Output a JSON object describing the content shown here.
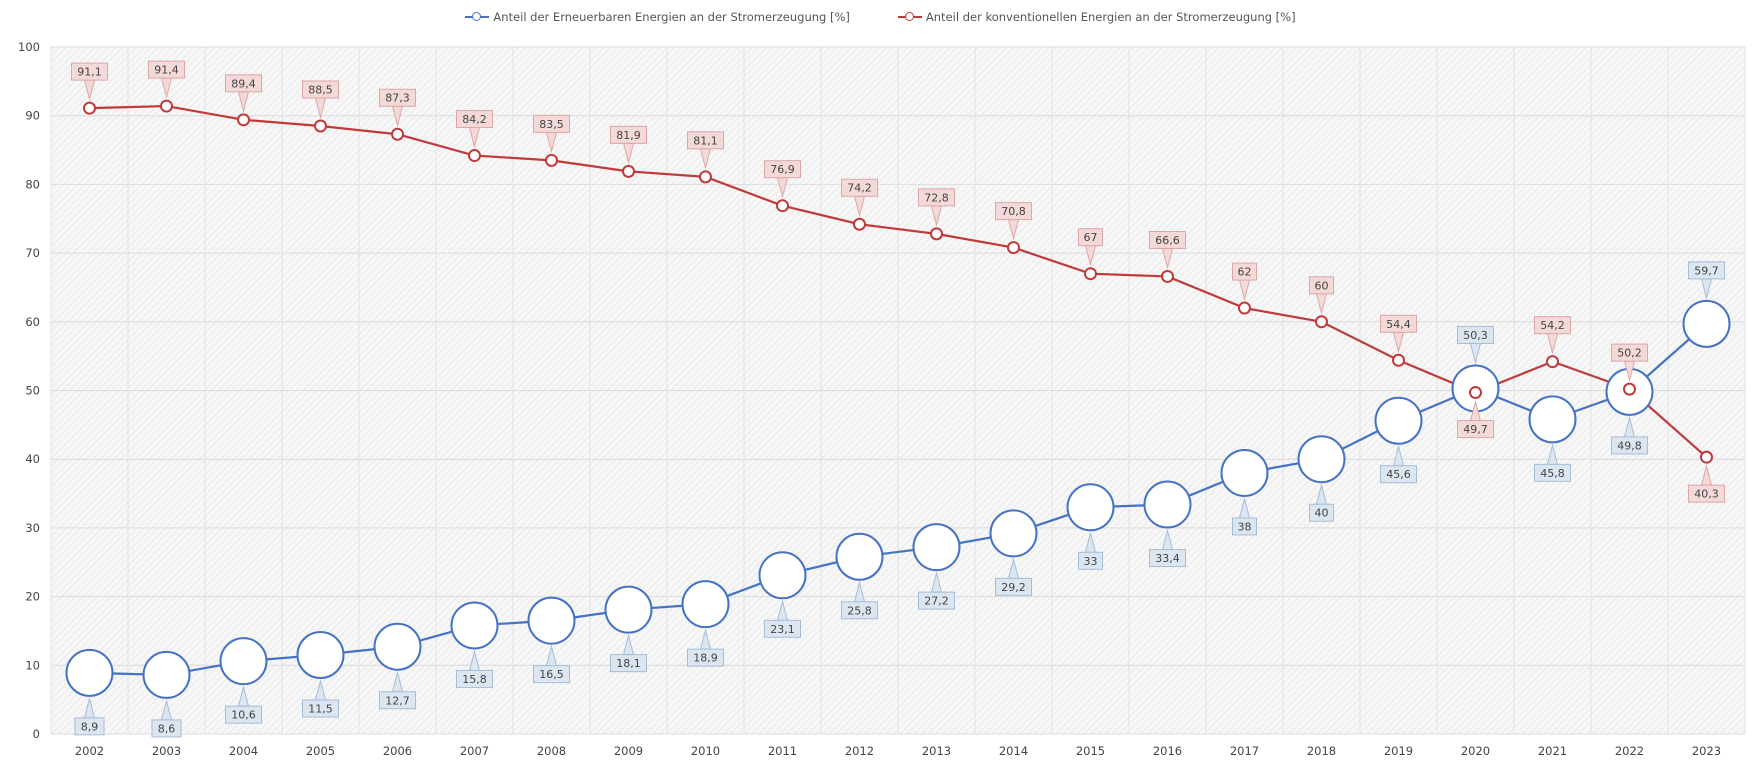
{
  "chart_data": {
    "type": "line",
    "categories": [
      "2002",
      "2003",
      "2004",
      "2005",
      "2006",
      "2007",
      "2008",
      "2009",
      "2010",
      "2011",
      "2012",
      "2013",
      "2014",
      "2015",
      "2016",
      "2017",
      "2018",
      "2019",
      "2020",
      "2021",
      "2022",
      "2023"
    ],
    "series": [
      {
        "name": "Anteil der Erneuerbaren Energien an der Stromerzeugung [%]",
        "color": "#4472c4",
        "values": [
          8.9,
          8.6,
          10.6,
          11.5,
          12.7,
          15.8,
          16.5,
          18.1,
          18.9,
          23.1,
          25.8,
          27.2,
          29.2,
          33,
          33.4,
          38,
          40,
          45.6,
          50.3,
          45.8,
          49.8,
          59.7
        ],
        "labels": [
          "8,9",
          "8,6",
          "10,6",
          "11,5",
          "12,7",
          "15,8",
          "16,5",
          "18,1",
          "18,9",
          "23,1",
          "25,8",
          "27,2",
          "29,2",
          "33",
          "33,4",
          "38",
          "40",
          "45,6",
          "50,3",
          "45,8",
          "49,8",
          "59,7"
        ]
      },
      {
        "name": "Anteil der konventionellen Energien an der Stromerzeugung [%]",
        "color": "#c0393b",
        "values": [
          91.1,
          91.4,
          89.4,
          88.5,
          87.3,
          84.2,
          83.5,
          81.9,
          81.1,
          76.9,
          74.2,
          72.8,
          70.8,
          67,
          66.6,
          62,
          60,
          54.4,
          49.7,
          54.2,
          50.2,
          40.3
        ],
        "labels": [
          "91,1",
          "91,4",
          "89,4",
          "88,5",
          "87,3",
          "84,2",
          "83,5",
          "81,9",
          "81,1",
          "76,9",
          "74,2",
          "72,8",
          "70,8",
          "67",
          "66,6",
          "62",
          "60",
          "54,4",
          "49,7",
          "54,2",
          "50,2",
          "40,3"
        ]
      }
    ],
    "yticks": [
      "0",
      "10",
      "20",
      "30",
      "40",
      "50",
      "60",
      "70",
      "80",
      "90",
      "100"
    ],
    "ylim": [
      0,
      100
    ],
    "grid": true,
    "legend_position": "top-center"
  }
}
